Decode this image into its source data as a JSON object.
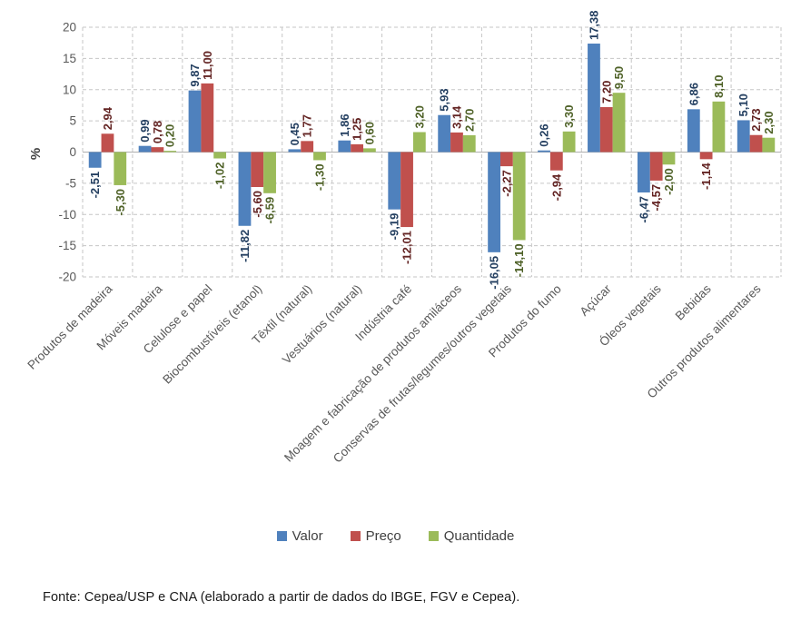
{
  "chart_data": {
    "type": "bar",
    "title": "",
    "ylabel": "%",
    "xlabel": "",
    "ylim": [
      -20,
      20
    ],
    "ytick_step": 5,
    "yticks": [
      20,
      15,
      10,
      5,
      0,
      -5,
      -10,
      -15,
      -20
    ],
    "grid": {
      "style": "dashed",
      "color": "#c6c6c6",
      "zero_line_color": "#b0b0b0"
    },
    "axis_text_color": "#595959",
    "axis_label_color": "#404040",
    "legend_position": "bottom",
    "decimal_separator": ",",
    "categories": [
      "Produtos de madeira",
      "Móveis madeira",
      "Celulose e papel",
      "Biocombustíveis (etanol)",
      "Têxtil (natural)",
      "Vestuários (natural)",
      "Indústria café",
      "Moagem e fabricação de produtos amiláceos",
      "Conservas de frutas/legumes/outros vegetais",
      "Produtos do fumo",
      "Açúcar",
      "Óleos vegetais",
      "Bebidas",
      "Outros produtos alimentares"
    ],
    "series": [
      {
        "name": "Valor",
        "color": "#4F81BD",
        "label_color": "#254061",
        "values": [
          -2.51,
          0.99,
          9.87,
          -11.82,
          0.45,
          1.86,
          -9.19,
          5.93,
          -16.05,
          0.26,
          17.38,
          -6.47,
          6.86,
          5.1
        ]
      },
      {
        "name": "Preço",
        "color": "#C0504D",
        "label_color": "#632423",
        "values": [
          2.94,
          0.78,
          11.0,
          -5.6,
          1.77,
          1.25,
          -12.01,
          3.14,
          -2.27,
          -2.94,
          7.2,
          -4.57,
          -1.14,
          2.73
        ]
      },
      {
        "name": "Quantidade",
        "color": "#9BBB59",
        "label_color": "#4F6228",
        "values": [
          -5.3,
          0.2,
          -1.02,
          -6.59,
          -1.3,
          0.6,
          3.2,
          2.7,
          -14.1,
          3.3,
          9.5,
          -2.0,
          8.1,
          2.3
        ]
      }
    ]
  },
  "footer": {
    "text": "Fonte: Cepea/USP e CNA (elaborado a partir de dados do IBGE, FGV e Cepea)."
  }
}
